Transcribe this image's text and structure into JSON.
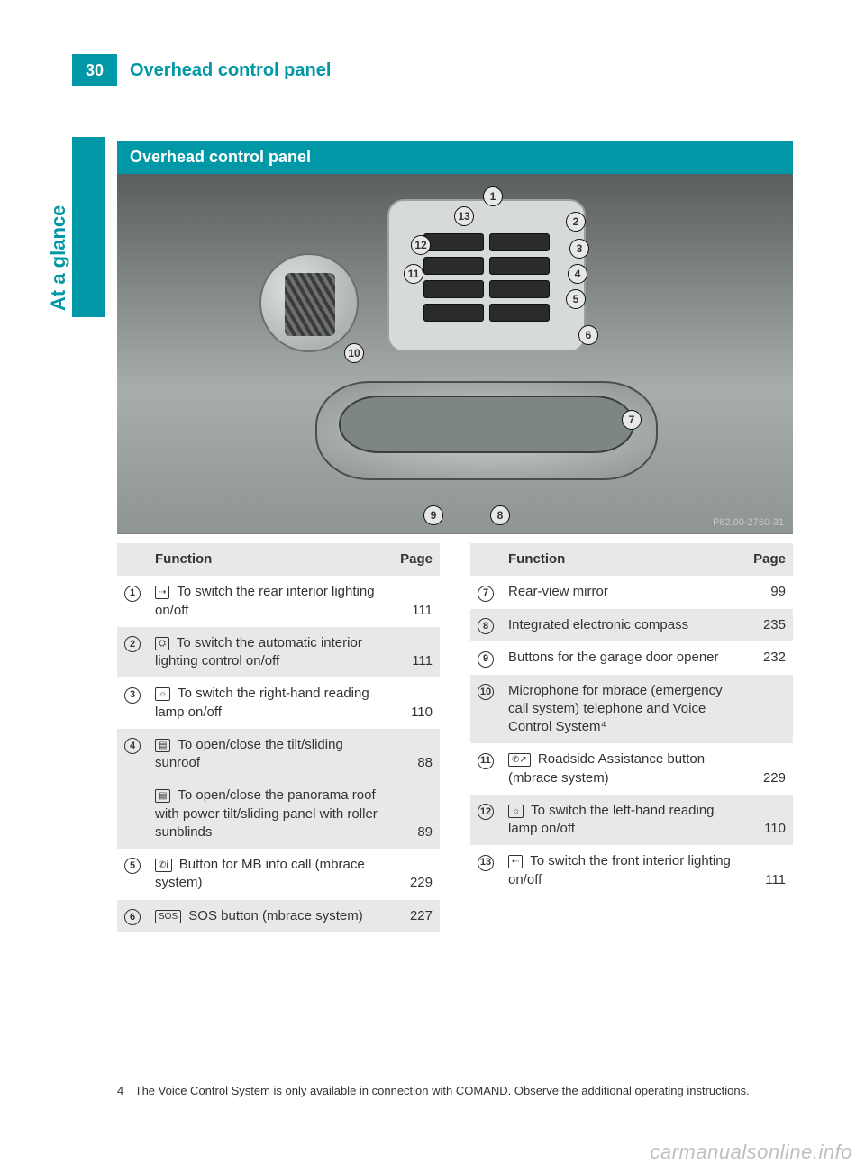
{
  "page": {
    "number": "30",
    "header_title": "Overhead control panel",
    "side_label": "At a glance",
    "section_title": "Overhead control panel",
    "figure_code": "P82.00-2760-31",
    "footnote_number": "4",
    "footnote_text": "The Voice Control System is only available in connection with COMAND. Observe the additional operating instructions.",
    "watermark": "carmanualsonline.info"
  },
  "colors": {
    "accent": "#0097a7",
    "row_alt": "#e7e8ea",
    "text": "#333333",
    "fig_bg_top": "#5a5e5e",
    "fig_bg_mid": "#a7adad"
  },
  "callouts": [
    "1",
    "2",
    "3",
    "4",
    "5",
    "6",
    "7",
    "8",
    "9",
    "10",
    "11",
    "12",
    "13"
  ],
  "table_headers": {
    "func": "Function",
    "page": "Page"
  },
  "left_rows": [
    {
      "n": "1",
      "icon": "⇢",
      "text": "To switch the rear interior lighting on/off",
      "page": "111",
      "alt": false
    },
    {
      "n": "2",
      "icon": "⛭",
      "text": "To switch the automatic interior lighting control on/off",
      "page": "111",
      "alt": true
    },
    {
      "n": "3",
      "icon": "☼",
      "text": "To switch the right-hand reading lamp on/off",
      "page": "110",
      "alt": false
    },
    {
      "n": "4",
      "icon": "▤",
      "text": "To open/close the tilt/sliding sunroof",
      "page": "88",
      "alt": true
    },
    {
      "n": "",
      "icon": "▤",
      "text": "To open/close the panorama roof with power tilt/sliding panel with roller sunblinds",
      "page": "89",
      "alt": true,
      "continued": true
    },
    {
      "n": "5",
      "icon": "✆i",
      "text": "Button for MB info call (mbrace system)",
      "page": "229",
      "alt": false
    },
    {
      "n": "6",
      "icon": "SOS",
      "text": "SOS button (mbrace system)",
      "page": "227",
      "alt": true
    }
  ],
  "right_rows": [
    {
      "n": "7",
      "icon": "",
      "text": "Rear-view mirror",
      "page": "99",
      "alt": false
    },
    {
      "n": "8",
      "icon": "",
      "text": "Integrated electronic compass",
      "page": "235",
      "alt": true
    },
    {
      "n": "9",
      "icon": "",
      "text": "Buttons for the garage door opener",
      "page": "232",
      "alt": false
    },
    {
      "n": "10",
      "icon": "",
      "text": "Microphone for mbrace (emergency call system) telephone and Voice Control System⁴",
      "page": "",
      "alt": true
    },
    {
      "n": "11",
      "icon": "✆↗",
      "text": "Roadside Assistance button (mbrace system)",
      "page": "229",
      "alt": false
    },
    {
      "n": "12",
      "icon": "☼",
      "text": "To switch the left-hand reading lamp on/off",
      "page": "110",
      "alt": true
    },
    {
      "n": "13",
      "icon": "⇠",
      "text": "To switch the front interior lighting on/off",
      "page": "111",
      "alt": false
    }
  ]
}
